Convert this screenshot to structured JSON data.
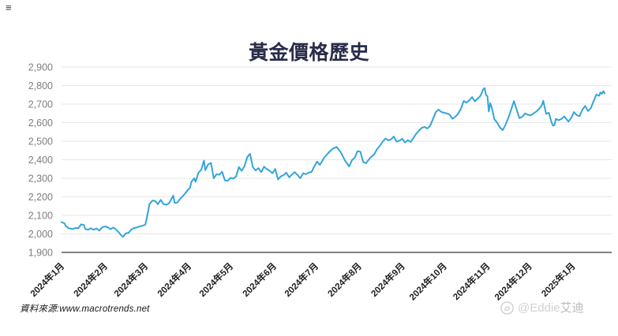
{
  "page": {
    "corner_mark": "≡"
  },
  "header": {
    "title": "黃金價格歷史"
  },
  "source": {
    "prefix": "資料來源:",
    "url": "www.macrotrends.net"
  },
  "watermark": {
    "handle": "@Eddie",
    "name": "艾迪",
    "logo": "circle-logo-icon"
  },
  "chart_data": {
    "type": "line",
    "title": "黃金價格歷史",
    "xlabel": "",
    "ylabel": "",
    "grid": true,
    "legend_position": "none",
    "line_color": "#34a4da",
    "grid_color": "#e7e7e7",
    "axis_color": "#5a5a5a",
    "y_label_color": "#7d7d7d",
    "x_label_color": "#1f1f1f",
    "ylim": [
      1900,
      2900
    ],
    "y_ticks": [
      {
        "value": 2900,
        "label": "2,900"
      },
      {
        "value": 2800,
        "label": "2,800"
      },
      {
        "value": 2700,
        "label": "2,700"
      },
      {
        "value": 2600,
        "label": "2,600"
      },
      {
        "value": 2500,
        "label": "2,500"
      },
      {
        "value": 2400,
        "label": "2,400"
      },
      {
        "value": 2300,
        "label": "2,300"
      },
      {
        "value": 2200,
        "label": "2,200"
      },
      {
        "value": 2100,
        "label": "2,100"
      },
      {
        "value": 2000,
        "label": "2,000"
      },
      {
        "value": 1900,
        "label": "1,900"
      }
    ],
    "x_domain_days": [
      0,
      394
    ],
    "x_ticks": [
      {
        "day": 0,
        "label": "2024年1月"
      },
      {
        "day": 31,
        "label": "2024年2月"
      },
      {
        "day": 60,
        "label": "2024年3月"
      },
      {
        "day": 91,
        "label": "2024年4月"
      },
      {
        "day": 121,
        "label": "2024年5月"
      },
      {
        "day": 152,
        "label": "2024年6月"
      },
      {
        "day": 182,
        "label": "2024年7月"
      },
      {
        "day": 213,
        "label": "2024年8月"
      },
      {
        "day": 244,
        "label": "2024年9月"
      },
      {
        "day": 274,
        "label": "2024年10月"
      },
      {
        "day": 305,
        "label": "2024年11月"
      },
      {
        "day": 335,
        "label": "2024年12月"
      },
      {
        "day": 366,
        "label": "2025年1月"
      }
    ],
    "points": [
      [
        0,
        2063
      ],
      [
        2,
        2058
      ],
      [
        3,
        2043
      ],
      [
        5,
        2030
      ],
      [
        8,
        2026
      ],
      [
        10,
        2032
      ],
      [
        12,
        2030
      ],
      [
        14,
        2051
      ],
      [
        16,
        2048
      ],
      [
        17,
        2026
      ],
      [
        19,
        2022
      ],
      [
        21,
        2030
      ],
      [
        23,
        2022
      ],
      [
        25,
        2029
      ],
      [
        27,
        2018
      ],
      [
        29,
        2034
      ],
      [
        31,
        2040
      ],
      [
        33,
        2036
      ],
      [
        35,
        2025
      ],
      [
        37,
        2034
      ],
      [
        39,
        2024
      ],
      [
        41,
        2008
      ],
      [
        43,
        1990
      ],
      [
        44,
        1984
      ],
      [
        46,
        2003
      ],
      [
        48,
        2005
      ],
      [
        50,
        2024
      ],
      [
        52,
        2031
      ],
      [
        54,
        2035
      ],
      [
        56,
        2040
      ],
      [
        58,
        2044
      ],
      [
        60,
        2050
      ],
      [
        61,
        2083
      ],
      [
        63,
        2161
      ],
      [
        65,
        2179
      ],
      [
        67,
        2178
      ],
      [
        69,
        2160
      ],
      [
        71,
        2184
      ],
      [
        73,
        2161
      ],
      [
        75,
        2157
      ],
      [
        77,
        2165
      ],
      [
        80,
        2207
      ],
      [
        81,
        2167
      ],
      [
        83,
        2170
      ],
      [
        85,
        2190
      ],
      [
        88,
        2214
      ],
      [
        90,
        2233
      ],
      [
        92,
        2250
      ],
      [
        93,
        2281
      ],
      [
        95,
        2300
      ],
      [
        96,
        2281
      ],
      [
        98,
        2330
      ],
      [
        100,
        2345
      ],
      [
        102,
        2395
      ],
      [
        103,
        2344
      ],
      [
        105,
        2375
      ],
      [
        107,
        2382
      ],
      [
        109,
        2300
      ],
      [
        111,
        2322
      ],
      [
        113,
        2319
      ],
      [
        115,
        2335
      ],
      [
        117,
        2288
      ],
      [
        119,
        2286
      ],
      [
        121,
        2302
      ],
      [
        123,
        2298
      ],
      [
        125,
        2310
      ],
      [
        127,
        2360
      ],
      [
        129,
        2340
      ],
      [
        131,
        2365
      ],
      [
        133,
        2414
      ],
      [
        135,
        2432
      ],
      [
        137,
        2360
      ],
      [
        139,
        2342
      ],
      [
        141,
        2355
      ],
      [
        143,
        2333
      ],
      [
        145,
        2362
      ],
      [
        147,
        2350
      ],
      [
        149,
        2341
      ],
      [
        151,
        2327
      ],
      [
        153,
        2350
      ],
      [
        155,
        2293
      ],
      [
        157,
        2310
      ],
      [
        159,
        2317
      ],
      [
        161,
        2330
      ],
      [
        163,
        2305
      ],
      [
        165,
        2320
      ],
      [
        167,
        2333
      ],
      [
        169,
        2318
      ],
      [
        171,
        2300
      ],
      [
        173,
        2327
      ],
      [
        175,
        2322
      ],
      [
        177,
        2330
      ],
      [
        179,
        2334
      ],
      [
        181,
        2364
      ],
      [
        183,
        2390
      ],
      [
        185,
        2372
      ],
      [
        188,
        2410
      ],
      [
        191,
        2436
      ],
      [
        194,
        2458
      ],
      [
        197,
        2469
      ],
      [
        200,
        2440
      ],
      [
        203,
        2396
      ],
      [
        206,
        2364
      ],
      [
        208,
        2398
      ],
      [
        210,
        2411
      ],
      [
        212,
        2446
      ],
      [
        214,
        2443
      ],
      [
        216,
        2388
      ],
      [
        218,
        2381
      ],
      [
        221,
        2410
      ],
      [
        224,
        2430
      ],
      [
        226,
        2458
      ],
      [
        228,
        2475
      ],
      [
        230,
        2498
      ],
      [
        232,
        2514
      ],
      [
        234,
        2505
      ],
      [
        236,
        2510
      ],
      [
        238,
        2525
      ],
      [
        240,
        2497
      ],
      [
        242,
        2503
      ],
      [
        244,
        2513
      ],
      [
        246,
        2493
      ],
      [
        248,
        2505
      ],
      [
        250,
        2496
      ],
      [
        252,
        2517
      ],
      [
        254,
        2540
      ],
      [
        256,
        2558
      ],
      [
        258,
        2572
      ],
      [
        260,
        2577
      ],
      [
        262,
        2568
      ],
      [
        264,
        2584
      ],
      [
        266,
        2620
      ],
      [
        268,
        2657
      ],
      [
        270,
        2670
      ],
      [
        272,
        2658
      ],
      [
        274,
        2653
      ],
      [
        276,
        2650
      ],
      [
        278,
        2643
      ],
      [
        280,
        2621
      ],
      [
        282,
        2632
      ],
      [
        284,
        2648
      ],
      [
        286,
        2674
      ],
      [
        288,
        2717
      ],
      [
        290,
        2708
      ],
      [
        292,
        2721
      ],
      [
        294,
        2738
      ],
      [
        296,
        2715
      ],
      [
        298,
        2730
      ],
      [
        300,
        2744
      ],
      [
        302,
        2780
      ],
      [
        303,
        2787
      ],
      [
        304,
        2749
      ],
      [
        305,
        2743
      ],
      [
        306,
        2660
      ],
      [
        307,
        2705
      ],
      [
        308,
        2684
      ],
      [
        310,
        2618
      ],
      [
        312,
        2600
      ],
      [
        314,
        2573
      ],
      [
        316,
        2560
      ],
      [
        318,
        2590
      ],
      [
        320,
        2626
      ],
      [
        322,
        2670
      ],
      [
        324,
        2716
      ],
      [
        326,
        2668
      ],
      [
        328,
        2624
      ],
      [
        330,
        2632
      ],
      [
        332,
        2650
      ],
      [
        334,
        2643
      ],
      [
        336,
        2639
      ],
      [
        338,
        2650
      ],
      [
        340,
        2660
      ],
      [
        342,
        2674
      ],
      [
        344,
        2694
      ],
      [
        345,
        2718
      ],
      [
        347,
        2648
      ],
      [
        349,
        2653
      ],
      [
        351,
        2600
      ],
      [
        352,
        2584
      ],
      [
        353,
        2587
      ],
      [
        354,
        2620
      ],
      [
        356,
        2613
      ],
      [
        358,
        2620
      ],
      [
        360,
        2633
      ],
      [
        363,
        2606
      ],
      [
        365,
        2625
      ],
      [
        367,
        2657
      ],
      [
        369,
        2640
      ],
      [
        371,
        2635
      ],
      [
        373,
        2670
      ],
      [
        375,
        2690
      ],
      [
        377,
        2663
      ],
      [
        379,
        2678
      ],
      [
        381,
        2715
      ],
      [
        383,
        2751
      ],
      [
        385,
        2745
      ],
      [
        386,
        2763
      ],
      [
        387,
        2756
      ],
      [
        388,
        2770
      ],
      [
        389,
        2758
      ]
    ]
  }
}
